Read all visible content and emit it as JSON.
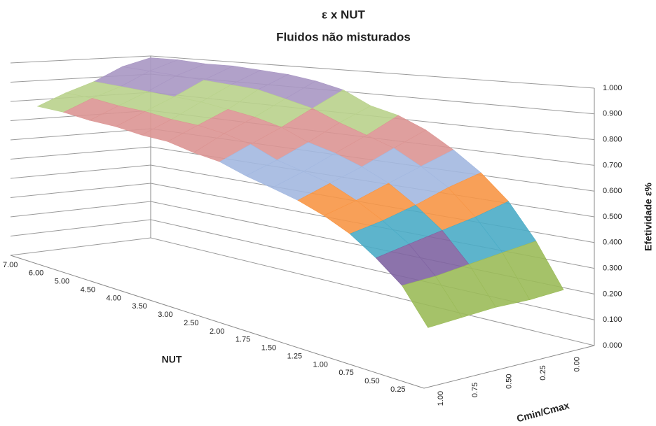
{
  "chart_data": {
    "type": "surface",
    "title": "ε x NUT",
    "subtitle": "Fluidos não misturados",
    "x_label": "NUT",
    "y_label": "Cmin/Cmax",
    "z_label": "Efetividade ε%",
    "categories": [
      "0.25",
      "0.50",
      "0.75",
      "1.00",
      "1.25",
      "1.50",
      "1.75",
      "2.00",
      "2.50",
      "3.00",
      "3.50",
      "4.00",
      "4.50",
      "5.00",
      "6.00",
      "7.00"
    ],
    "series": [
      {
        "name": "0.00",
        "values": [
          0.22,
          0.39,
          0.53,
          0.63,
          0.71,
          0.78,
          0.83,
          0.86,
          0.92,
          0.95,
          0.97,
          0.98,
          0.99,
          0.99,
          1.0,
          1.0
        ]
      },
      {
        "name": "0.25",
        "values": [
          0.21,
          0.37,
          0.49,
          0.59,
          0.66,
          0.72,
          0.76,
          0.8,
          0.85,
          0.88,
          0.91,
          0.92,
          0.93,
          0.94,
          0.95,
          0.96
        ]
      },
      {
        "name": "0.50",
        "values": [
          0.21,
          0.35,
          0.46,
          0.54,
          0.61,
          0.66,
          0.7,
          0.73,
          0.78,
          0.81,
          0.83,
          0.85,
          0.86,
          0.87,
          0.88,
          0.89
        ]
      },
      {
        "name": "0.75",
        "values": [
          0.2,
          0.33,
          0.43,
          0.5,
          0.56,
          0.61,
          0.64,
          0.67,
          0.72,
          0.75,
          0.77,
          0.78,
          0.8,
          0.81,
          0.83,
          0.84
        ]
      },
      {
        "name": "1.00",
        "values": [
          0.19,
          0.32,
          0.4,
          0.47,
          0.52,
          0.56,
          0.59,
          0.62,
          0.66,
          0.68,
          0.71,
          0.72,
          0.74,
          0.75,
          0.77,
          0.78
        ]
      }
    ],
    "zlim": [
      0,
      1
    ],
    "zticks": [
      {
        "value": 0,
        "label": "0.000"
      },
      {
        "value": 0.1,
        "label": "0.100"
      },
      {
        "value": 0.2,
        "label": "0.200"
      },
      {
        "value": 0.3,
        "label": "0.300"
      },
      {
        "value": 0.4,
        "label": "0.400"
      },
      {
        "value": 0.5,
        "label": "0.500"
      },
      {
        "value": 0.6,
        "label": "0.600"
      },
      {
        "value": 0.7,
        "label": "0.700"
      },
      {
        "value": 0.8,
        "label": "0.800"
      },
      {
        "value": 0.9,
        "label": "0.900"
      },
      {
        "value": 1,
        "label": "1.000"
      }
    ],
    "band_colors": [
      "#4f81bd",
      "#c0504d",
      "#9bbb59",
      "#8064a2",
      "#4bacc6",
      "#f79646",
      "#a3b8e0",
      "#dc9593",
      "#b9d28c",
      "#a997c3"
    ],
    "grid": true
  }
}
